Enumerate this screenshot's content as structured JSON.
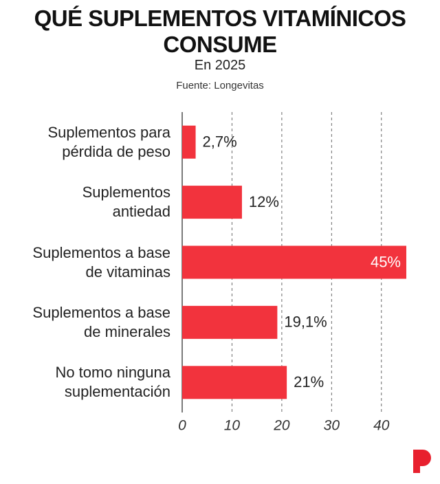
{
  "chart_data": {
    "type": "barh",
    "title": "QUÉ SUPLEMENTOS VITAMÍNICOS CONSUME",
    "subtitle": "En 2025",
    "source": "Fuente: Longevitas",
    "categories": [
      "Suplementos para\npérdida de peso",
      "Suplementos\nantiedad",
      "Suplementos a base\nde vitaminas",
      "Suplementos a base\nde minerales",
      "No tomo ninguna\nsuplementación"
    ],
    "values": [
      2.7,
      12,
      45,
      19.1,
      21
    ],
    "value_labels": [
      "2,7%",
      "12%",
      "45%",
      "19,1%",
      "21%"
    ],
    "color": "#f2333d",
    "xlim": [
      0,
      45
    ],
    "xticks": [
      0,
      10,
      20,
      30,
      40
    ],
    "grid": true
  }
}
